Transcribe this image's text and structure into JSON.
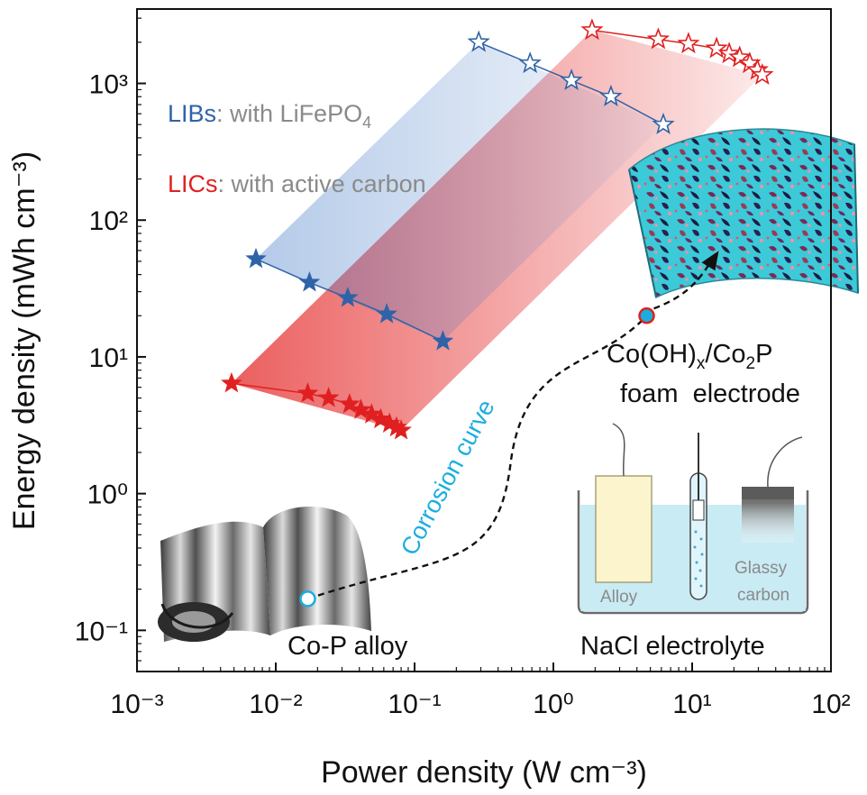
{
  "chart_data": {
    "type": "scatter",
    "xlabel": "Power density (W cm⁻³)",
    "ylabel": "Energy density (mWh cm⁻³)",
    "x_scale": "log",
    "y_scale": "log",
    "xlim": [
      0.001,
      100
    ],
    "ylim": [
      0.05,
      3500
    ],
    "x_ticks": [
      {
        "value": 0.001,
        "label": "10⁻³"
      },
      {
        "value": 0.01,
        "label": "10⁻²"
      },
      {
        "value": 0.1,
        "label": "10⁻¹"
      },
      {
        "value": 1,
        "label": "10⁰"
      },
      {
        "value": 10,
        "label": "10¹"
      },
      {
        "value": 100,
        "label": "10²"
      }
    ],
    "y_ticks": [
      {
        "value": 0.1,
        "label": "10⁻¹"
      },
      {
        "value": 1,
        "label": "10⁰"
      },
      {
        "value": 10,
        "label": "10¹"
      },
      {
        "value": 100,
        "label": "10²"
      },
      {
        "value": 1000,
        "label": "10³"
      }
    ],
    "grid": false,
    "legend_position": "top-left",
    "series": [
      {
        "name": "LIBs",
        "color": "#2f63a8",
        "low": [
          [
            0.0072,
            52
          ],
          [
            0.0175,
            35
          ],
          [
            0.033,
            27
          ],
          [
            0.063,
            20.5
          ],
          [
            0.16,
            13
          ]
        ],
        "high": [
          [
            0.29,
            2000
          ],
          [
            0.68,
            1400
          ],
          [
            1.35,
            1050
          ],
          [
            2.6,
            800
          ],
          [
            6.2,
            500
          ]
        ]
      },
      {
        "name": "LICs",
        "color": "#e02020",
        "low": [
          [
            0.0048,
            6.4
          ],
          [
            0.017,
            5.4
          ],
          [
            0.024,
            5.0
          ],
          [
            0.034,
            4.5
          ],
          [
            0.041,
            4.1
          ],
          [
            0.049,
            3.8
          ],
          [
            0.057,
            3.5
          ],
          [
            0.066,
            3.25
          ],
          [
            0.074,
            3.05
          ],
          [
            0.08,
            2.9
          ]
        ],
        "high": [
          [
            1.9,
            2450
          ],
          [
            5.7,
            2100
          ],
          [
            9.4,
            1950
          ],
          [
            15,
            1800
          ],
          [
            18.5,
            1650
          ],
          [
            22,
            1550
          ],
          [
            26,
            1400
          ],
          [
            29.5,
            1250
          ],
          [
            32,
            1150
          ]
        ]
      }
    ],
    "legend": [
      {
        "label": "LIBs",
        "text": ": with LiFePO",
        "sub": "4",
        "color": "#2f63a8"
      },
      {
        "label": "LICs",
        "text": ": with active carbon",
        "sub": "",
        "color": "#e02020"
      }
    ],
    "corrosion_curve": {
      "label": "Corrosion curve",
      "color": "#1aaede",
      "start": [
        0.017,
        0.17
      ],
      "end": [
        4.7,
        20
      ]
    },
    "annotations": {
      "alloy": "Co-P alloy",
      "electrode_line1_pre": "Co(OH)",
      "electrode_line1_sub1": "x",
      "electrode_line1_mid": "/Co",
      "electrode_line1_sub2": "2",
      "electrode_line1_post": "P",
      "electrode_line2": "foam  electrode",
      "electrolyte": "NaCl electrolyte"
    },
    "inset": {
      "left_electrode": "Alloy",
      "right_electrode_line1": "Glassy",
      "right_electrode_line2": "carbon"
    }
  }
}
